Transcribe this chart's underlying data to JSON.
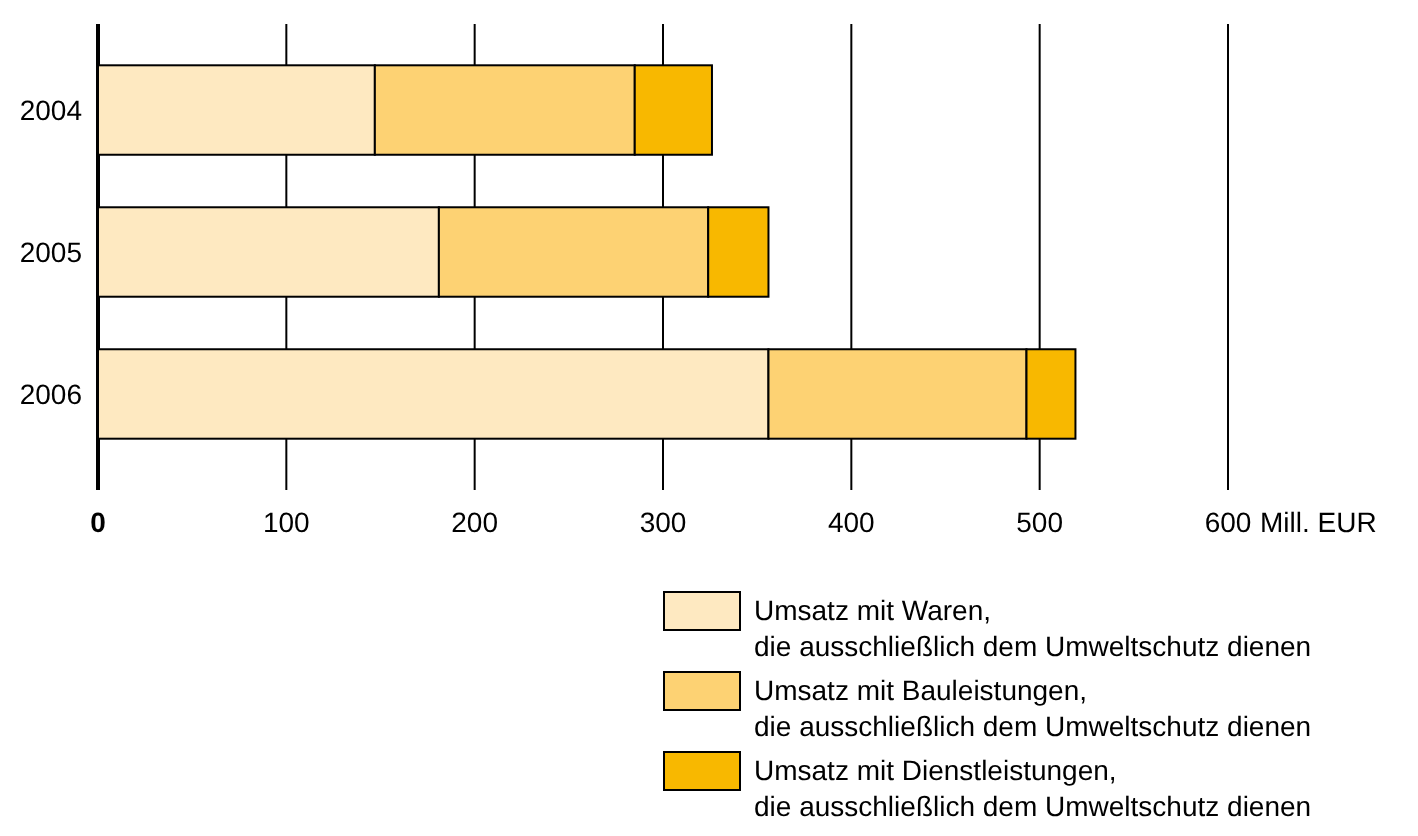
{
  "chart_data": {
    "type": "bar",
    "orientation": "horizontal",
    "stacked": true,
    "xlabel": "Mill. EUR",
    "categories": [
      "2004",
      "2005",
      "2006"
    ],
    "series": [
      {
        "name": "Umsatz mit Waren,\ndie ausschließlich dem Umweltschutz dienen",
        "color": "#fee9c1",
        "values": [
          147,
          181,
          356
        ]
      },
      {
        "name": "Umsatz mit Bauleistungen,\ndie ausschließlich dem Umweltschutz dienen",
        "color": "#fdd273",
        "values": [
          138,
          143,
          137
        ]
      },
      {
        "name": "Umsatz mit Dienstleistungen,\ndie ausschließlich dem Umweltschutz dienen",
        "color": "#f8b800",
        "values": [
          41,
          32,
          26
        ]
      }
    ],
    "xlim": [
      0,
      600
    ],
    "xticks": [
      0,
      100,
      200,
      300,
      400,
      500,
      600
    ],
    "grid": "x",
    "legend": "bottom right"
  }
}
